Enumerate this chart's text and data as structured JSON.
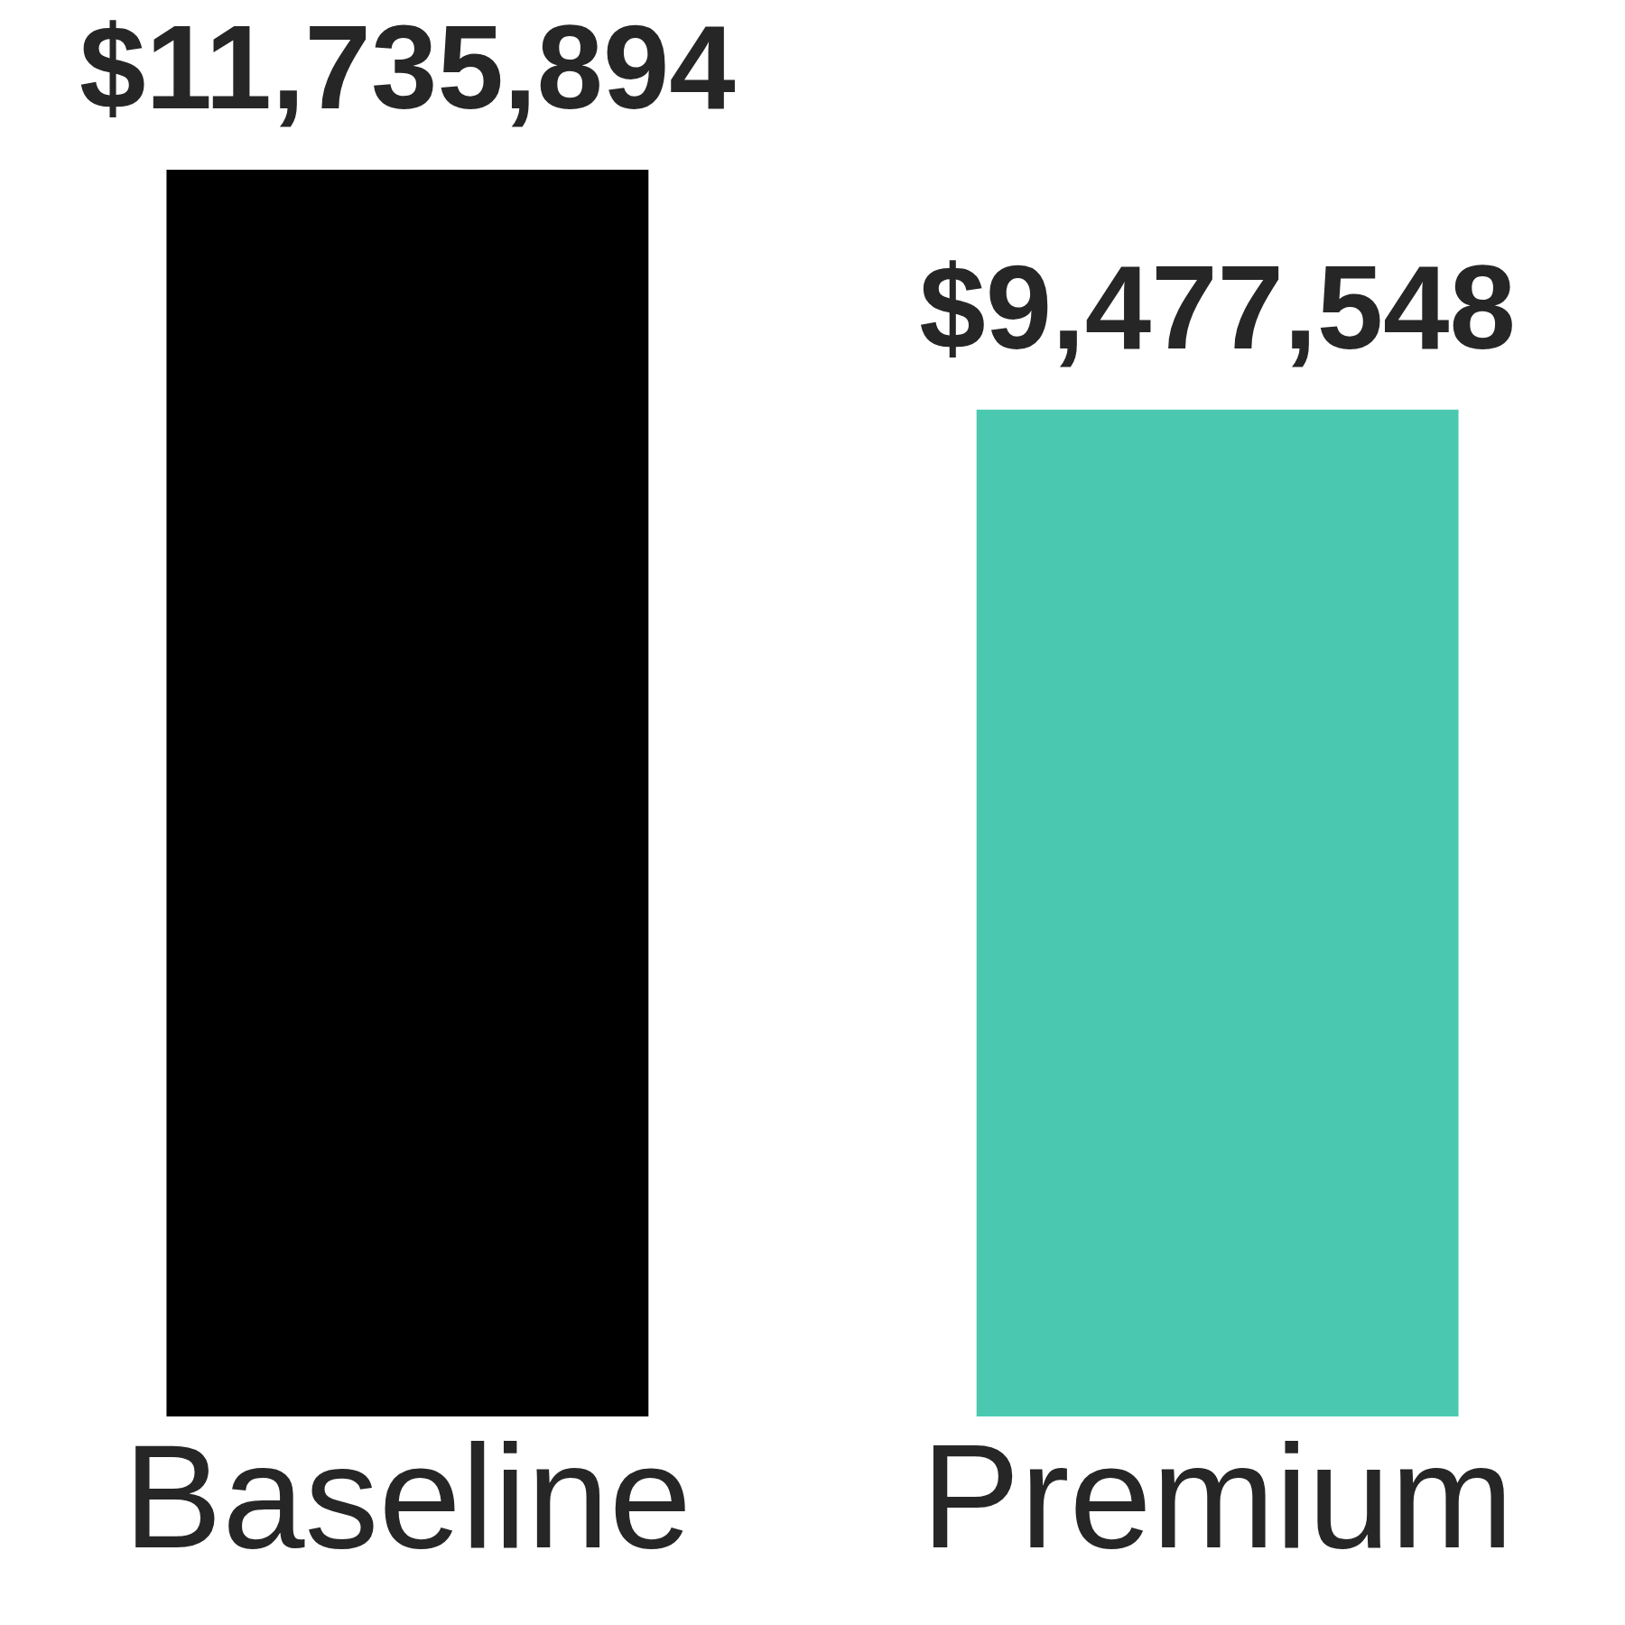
{
  "chart_data": {
    "type": "bar",
    "categories": [
      "Baseline",
      "Premium"
    ],
    "values": [
      11735894,
      9477548
    ],
    "colors": [
      "#000000",
      "#4bc9b0"
    ],
    "value_labels": [
      "$11,735,894",
      "$9,477,548"
    ]
  }
}
